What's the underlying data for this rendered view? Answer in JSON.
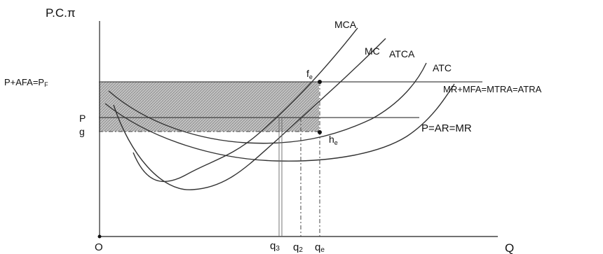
{
  "axes": {
    "y_label": "P.C.π",
    "x_label": "Q",
    "origin_label": "O"
  },
  "price_labels": {
    "pf": "P+AFA=P",
    "pf_sub": "F",
    "p": "P",
    "g": "g"
  },
  "line_labels": {
    "upper": "MR+MFA=MTRA=ATRA",
    "lower": "P=AR=MR"
  },
  "curve_labels": {
    "mca": "MCA",
    "mc": "MC",
    "atca": "ATCA",
    "atc": "ATC"
  },
  "point_labels": {
    "fe": "f",
    "fe_sub": "e",
    "he": "h",
    "he_sub": "e"
  },
  "q_labels": {
    "q3": "q",
    "q3_sub": "3",
    "q2": "q",
    "q2_sub": "2",
    "qe": "q",
    "qe_sub": "e"
  }
}
